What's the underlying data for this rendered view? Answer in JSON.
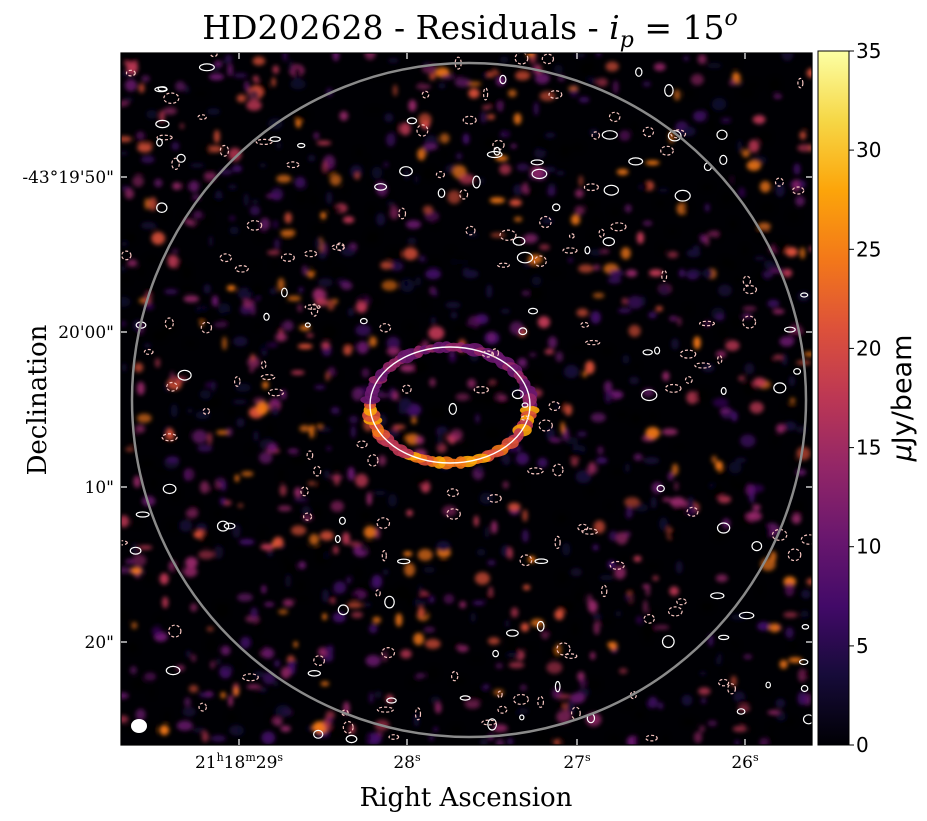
{
  "chart_data": {
    "type": "heatmap",
    "title": {
      "prefix": "HD202628 - Residuals - ",
      "math_symbol": "i",
      "math_subscript": "p",
      "math_equals": " = 15",
      "math_superscript": "o"
    },
    "xlabel": "Right Ascension",
    "ylabel": "Declination",
    "x_ticks": [
      {
        "main": "21",
        "sup1": "h",
        "mid": "18",
        "sup2": "m",
        "end": "29",
        "sup3": "s"
      },
      {
        "main": "28",
        "sup1": "s"
      },
      {
        "main": "27",
        "sup1": "s"
      },
      {
        "main": "26",
        "sup1": "s"
      }
    ],
    "y_ticks": [
      "-43°19'50\"",
      "20'00\"",
      "10\"",
      "20\""
    ],
    "colorbar": {
      "label_mu": "μ",
      "label_rest": "Jy/beam",
      "colormap": "inferno",
      "vmin": 0,
      "vmax": 35,
      "ticks": [
        "0",
        "5",
        "10",
        "15",
        "20",
        "25",
        "30",
        "35"
      ]
    },
    "features": {
      "ring": "eccentric debris ring, brighter along the southern arc",
      "contours_positive": "white solid",
      "contours_negative": "pink dashed",
      "field_circle": "grey circle marking the primary beam",
      "beam": "white filled ellipse at lower-left"
    },
    "colors": {
      "positive_contour": "#ffffff",
      "negative_contour": "#f7c6c1",
      "field_circle": "#8a8a8a",
      "background": "#000004"
    }
  }
}
